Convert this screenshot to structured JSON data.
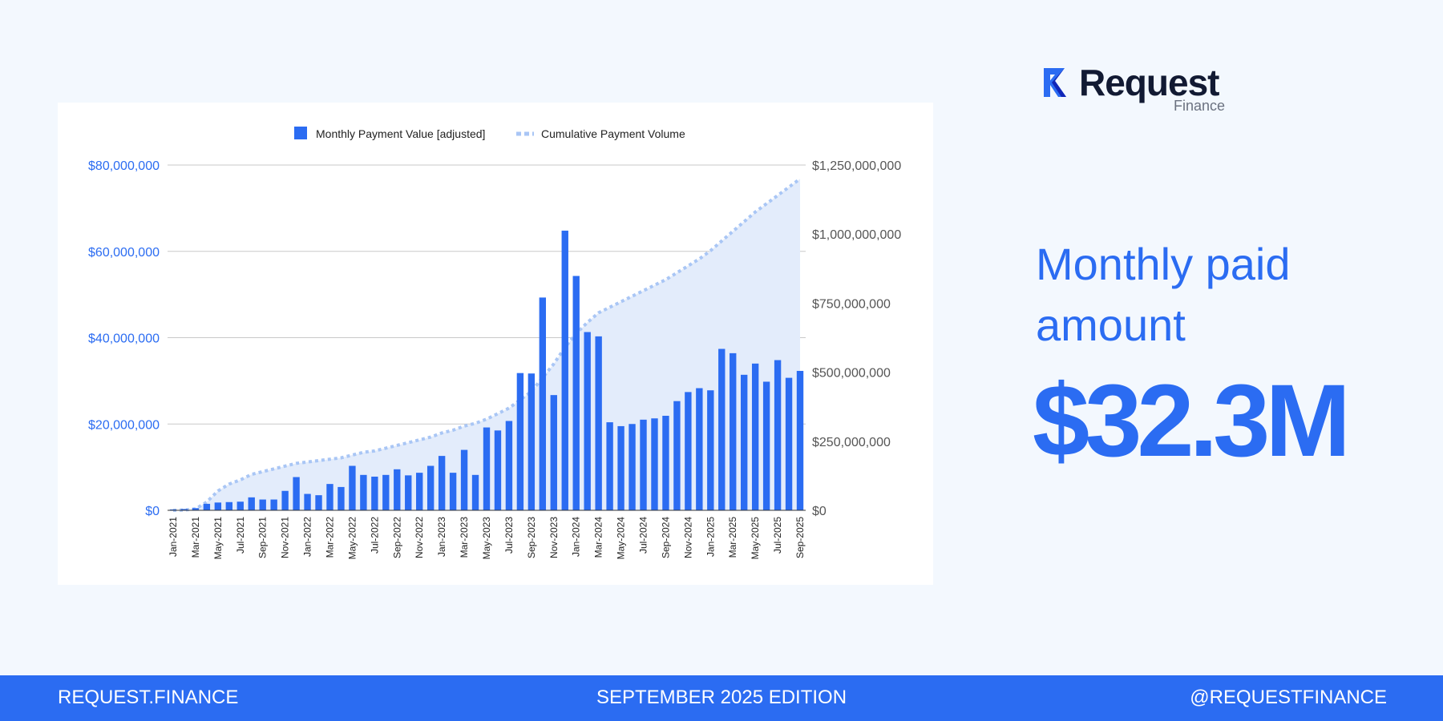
{
  "brand": {
    "name": "Request",
    "sub": "Finance"
  },
  "headline": "Monthly paid amount",
  "highlight_value": "$32.3M",
  "footer": {
    "left": "REQUEST.FINANCE",
    "center": "SEPTEMBER 2025  EDITION",
    "right": "@REQUESTFINANCE"
  },
  "colors": {
    "accent": "#2b6cf2",
    "cumulative_line": "#a9c6f5",
    "cumulative_fill": "#e3ecfb",
    "background": "#f3f8fe"
  },
  "chart_data": {
    "type": "bar",
    "title": "",
    "legend": [
      "Monthly Payment Value [adjusted]",
      "Cumulative Payment Volume"
    ],
    "categories": [
      "Jan-2021",
      "Feb-2021",
      "Mar-2021",
      "Apr-2021",
      "May-2021",
      "Jun-2021",
      "Jul-2021",
      "Aug-2021",
      "Sep-2021",
      "Oct-2021",
      "Nov-2021",
      "Dec-2021",
      "Jan-2022",
      "Feb-2022",
      "Mar-2022",
      "Apr-2022",
      "May-2022",
      "Jun-2022",
      "Jul-2022",
      "Aug-2022",
      "Sep-2022",
      "Oct-2022",
      "Nov-2022",
      "Dec-2022",
      "Jan-2023",
      "Feb-2023",
      "Mar-2023",
      "Apr-2023",
      "May-2023",
      "Jun-2023",
      "Jul-2023",
      "Aug-2023",
      "Sep-2023",
      "Oct-2023",
      "Nov-2023",
      "Dec-2023",
      "Jan-2024",
      "Feb-2024",
      "Mar-2024",
      "Apr-2024",
      "May-2024",
      "Jun-2024",
      "Jul-2024",
      "Aug-2024",
      "Sep-2024",
      "Oct-2024",
      "Nov-2024",
      "Dec-2024",
      "Jan-2025",
      "Feb-2025",
      "Mar-2025",
      "Apr-2025",
      "May-2025",
      "Jun-2025",
      "Jul-2025",
      "Aug-2025",
      "Sep-2025"
    ],
    "x_tick_labels": [
      "Jan-2021",
      "Mar-2021",
      "May-2021",
      "Jul-2021",
      "Sep-2021",
      "Nov-2021",
      "Jan-2022",
      "Mar-2022",
      "May-2022",
      "Jul-2022",
      "Sep-2022",
      "Nov-2022",
      "Jan-2023",
      "Mar-2023",
      "May-2023",
      "Jul-2023",
      "Sep-2023",
      "Nov-2023",
      "Jan-2024",
      "Mar-2024",
      "May-2024",
      "Jul-2024",
      "Sep-2024",
      "Nov-2024",
      "Jan-2025",
      "Mar-2025",
      "May-2025",
      "Jul-2025",
      "Sep-2025"
    ],
    "series": [
      {
        "name": "Monthly Payment Value [adjusted]",
        "type": "bar",
        "axis": "left",
        "values": [
          200000,
          300000,
          500000,
          1500000,
          1800000,
          1900000,
          2000000,
          3000000,
          2500000,
          2500000,
          4500000,
          7700000,
          3800000,
          3500000,
          6100000,
          5400000,
          10300000,
          8200000,
          7800000,
          8200000,
          9500000,
          8100000,
          8700000,
          10300000,
          12600000,
          8700000,
          14000000,
          8200000,
          19200000,
          18500000,
          20700000,
          31800000,
          31700000,
          49300000,
          26700000,
          64800000,
          54300000,
          41300000,
          40300000,
          20400000,
          19500000,
          20000000,
          21000000,
          21300000,
          21900000,
          25300000,
          27400000,
          28300000,
          27800000,
          37400000,
          36400000,
          31400000,
          34000000,
          29800000,
          34800000,
          30700000,
          32300000
        ]
      },
      {
        "name": "Cumulative Payment Volume",
        "type": "area-line",
        "axis": "right",
        "values": [
          0,
          1000000,
          5000000,
          30000000,
          70000000,
          95000000,
          110000000,
          130000000,
          140000000,
          150000000,
          160000000,
          170000000,
          175000000,
          180000000,
          185000000,
          190000000,
          200000000,
          210000000,
          215000000,
          225000000,
          235000000,
          245000000,
          255000000,
          265000000,
          280000000,
          290000000,
          305000000,
          315000000,
          330000000,
          350000000,
          370000000,
          400000000,
          430000000,
          480000000,
          530000000,
          590000000,
          640000000,
          680000000,
          715000000,
          735000000,
          755000000,
          775000000,
          795000000,
          815000000,
          835000000,
          860000000,
          885000000,
          910000000,
          940000000,
          975000000,
          1010000000,
          1045000000,
          1080000000,
          1110000000,
          1140000000,
          1170000000,
          1200000000
        ]
      }
    ],
    "y_left": {
      "min": 0,
      "max": 80000000,
      "ticks": [
        0,
        20000000,
        40000000,
        60000000,
        80000000
      ],
      "tick_labels": [
        "$0",
        "$20,000,000",
        "$40,000,000",
        "$60,000,000",
        "$80,000,000"
      ]
    },
    "y_right": {
      "min": 0,
      "max": 1250000000,
      "ticks": [
        0,
        250000000,
        500000000,
        750000000,
        1000000000,
        1250000000
      ],
      "tick_labels": [
        "$0",
        "$250,000,000",
        "$500,000,000",
        "$750,000,000",
        "$1,000,000,000",
        "$1,250,000,000"
      ]
    },
    "grid": true,
    "legend_position": "top-center"
  }
}
